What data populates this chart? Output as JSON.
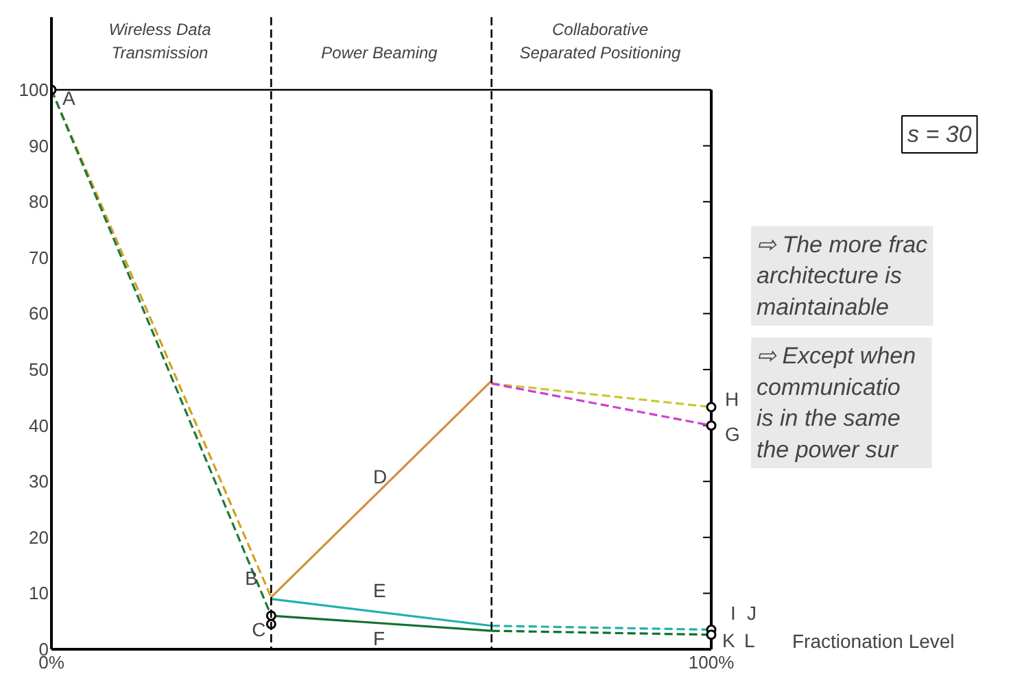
{
  "chart_data": {
    "type": "line",
    "xlabel": "Fractionation Level",
    "xlim": [
      0,
      100
    ],
    "ylim": [
      0,
      113
    ],
    "xticks": [
      {
        "value": 0,
        "label": "0%"
      },
      {
        "value": 100,
        "label": "100%"
      }
    ],
    "yticks": [
      0,
      10,
      20,
      30,
      40,
      50,
      60,
      70,
      80,
      90,
      100
    ],
    "grid": false,
    "marker": "none",
    "ref_lines": [
      {
        "axis": "x",
        "value": 33.3,
        "color": "#000000",
        "line_style": "dashed"
      },
      {
        "axis": "x",
        "value": 66.7,
        "color": "#000000",
        "line_style": "dashed"
      },
      {
        "axis": "y",
        "value": 100,
        "color": "#000000",
        "line_style": "solid"
      }
    ],
    "series": [
      {
        "color": "#d4a020",
        "line_style": "dashed",
        "x": [
          0,
          33.3
        ],
        "values": [
          100,
          9.3
        ]
      },
      {
        "color": "#1a7a3a",
        "line_style": "dashed",
        "x": [
          0,
          33.3
        ],
        "values": [
          100,
          6
        ]
      },
      {
        "color": "#d09040",
        "line_style": "solid",
        "x": [
          33.3,
          66.7
        ],
        "values": [
          9.3,
          48
        ]
      },
      {
        "color": "#20b0b0",
        "line_style": "solid",
        "x": [
          33.3,
          66.7
        ],
        "values": [
          9,
          4.2
        ]
      },
      {
        "color": "#107030",
        "line_style": "solid",
        "x": [
          33.3,
          66.7
        ],
        "values": [
          6,
          3.3
        ]
      },
      {
        "color": "#c8c830",
        "line_style": "dashed",
        "x": [
          66.7,
          100
        ],
        "values": [
          47.5,
          43.3
        ]
      },
      {
        "color": "#d040d0",
        "line_style": "dashed",
        "x": [
          66.7,
          100
        ],
        "values": [
          47.5,
          40
        ]
      },
      {
        "color": "#20b0b0",
        "line_style": "dashed",
        "x": [
          66.7,
          100
        ],
        "values": [
          4.2,
          3.5
        ]
      },
      {
        "color": "#107030",
        "line_style": "dashed",
        "x": [
          66.7,
          100
        ],
        "values": [
          3.3,
          2.6
        ]
      },
      {
        "type": "scatter",
        "marker": "circle",
        "color": "#000000",
        "x": [
          0,
          33.3,
          33.3,
          100,
          100,
          100,
          100
        ],
        "values": [
          100,
          6,
          4.5,
          43.3,
          40,
          3.5,
          2.6
        ]
      }
    ],
    "annotations": [
      "Wireless Data\nTransmission",
      "Power Beaming",
      "Collaborative\nSeparated Positioning",
      "s = 30",
      "⇨ The more frac\n    architecture is\n    maintainable",
      "⇨ Except when\n    communicatio\n    is in the same\n    the power sur",
      {
        "text": "A",
        "x": 0,
        "y": 100
      },
      {
        "text": "B",
        "x": 33.3,
        "y": 9.3
      },
      {
        "text": "C",
        "x": 33.3,
        "y": 4.5
      },
      {
        "text": "D",
        "x": 50,
        "y": 28.9
      },
      {
        "text": "E",
        "x": 50,
        "y": 6.6
      },
      {
        "text": "F",
        "x": 50,
        "y": 4.6
      },
      {
        "text": "G",
        "x": 100,
        "y": 40
      },
      {
        "text": "H",
        "x": 100,
        "y": 43.3
      },
      {
        "text": "I",
        "x": 100,
        "y": 3.5
      },
      {
        "text": "J",
        "x": 100,
        "y": 3.5
      },
      {
        "text": "K",
        "x": 100,
        "y": 2.6
      },
      {
        "text": "L",
        "x": 100,
        "y": 2.6
      }
    ]
  }
}
